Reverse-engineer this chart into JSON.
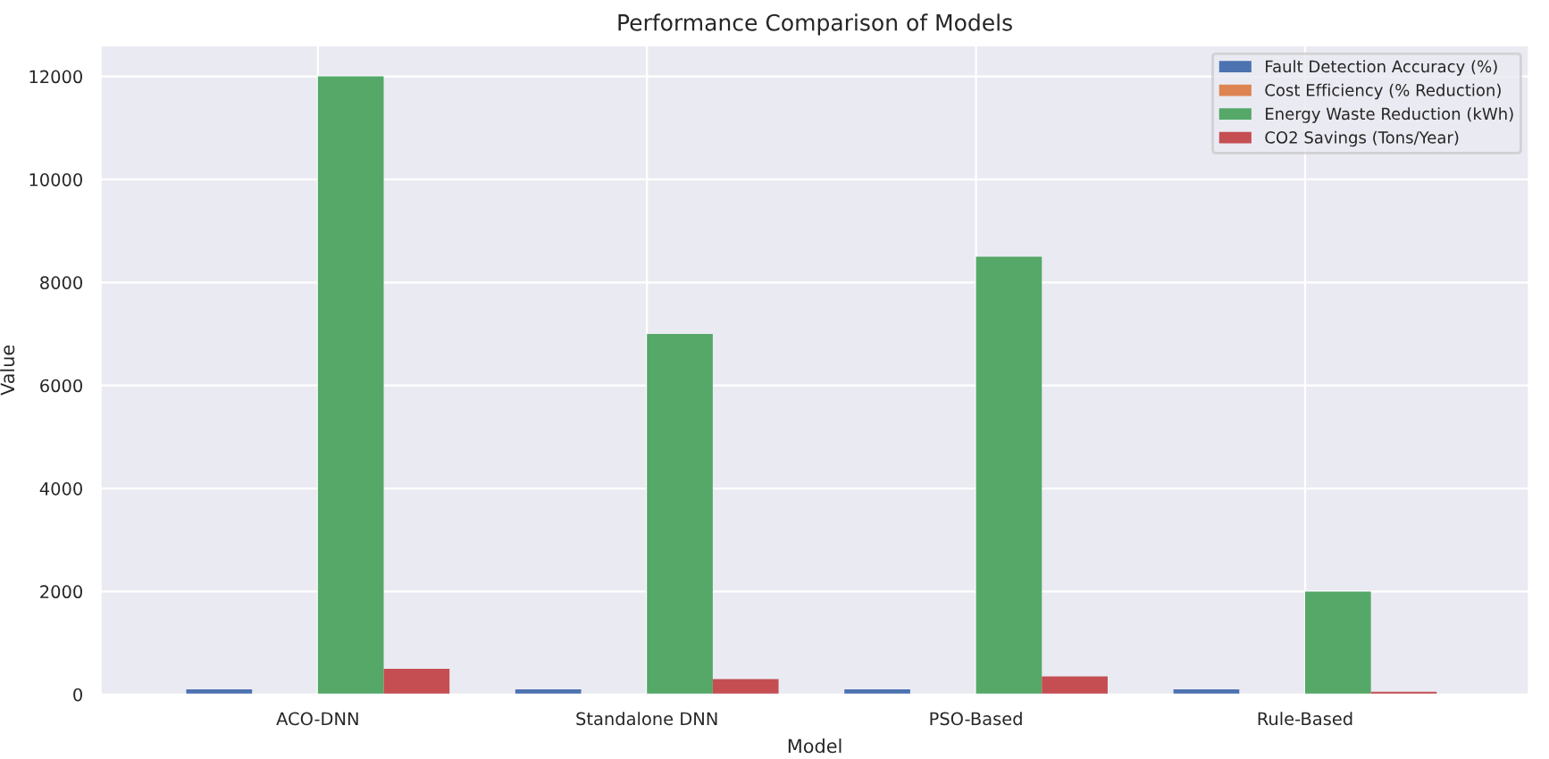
{
  "chart_data": {
    "type": "bar",
    "title": "Performance Comparison of Models",
    "xlabel": "Model",
    "ylabel": "Value",
    "categories": [
      "ACO-DNN",
      "Standalone DNN",
      "PSO-Based",
      "Rule-Based"
    ],
    "series": [
      {
        "name": "Fault Detection Accuracy (%)",
        "color": "#4c72b0",
        "values": [
          100,
          100,
          100,
          100
        ]
      },
      {
        "name": "Cost Efficiency (% Reduction)",
        "color": "#dd8452",
        "values": [
          null,
          null,
          null,
          null
        ]
      },
      {
        "name": "Energy Waste Reduction (kWh)",
        "color": "#55a868",
        "values": [
          12000,
          7000,
          8500,
          2000
        ]
      },
      {
        "name": "CO2 Savings (Tons/Year)",
        "color": "#c44e52",
        "values": [
          500,
          300,
          350,
          50
        ]
      }
    ],
    "ylim": [
      0,
      12600
    ],
    "yticks": [
      0,
      2000,
      4000,
      6000,
      8000,
      10000,
      12000
    ],
    "grid": true,
    "legend": "top right"
  }
}
